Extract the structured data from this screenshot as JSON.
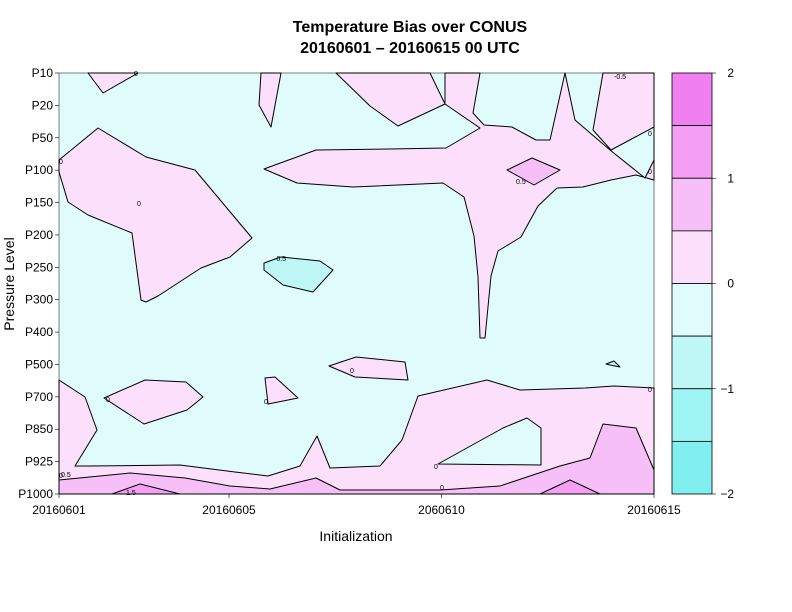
{
  "chart_data": {
    "type": "contour",
    "title": "Temperature Bias over CONUS",
    "subtitle": "20160601 – 20160615 00 UTC",
    "xlabel": "Initialization",
    "ylabel": "Pressure Level",
    "x_ticks": [
      "20160601",
      "20160605",
      "2060610",
      "20160615"
    ],
    "x_tick_days": [
      1,
      5,
      10,
      15
    ],
    "xlim": [
      1,
      15
    ],
    "y_ticks": [
      "P10",
      "P20",
      "P50",
      "P100",
      "P150",
      "P200",
      "P250",
      "P300",
      "P400",
      "P500",
      "P700",
      "P850",
      "P925",
      "P1000"
    ],
    "colorbar": {
      "range": [
        -2,
        2
      ],
      "ticks": [
        "2",
        "1",
        "0",
        "−1",
        "−2"
      ],
      "tick_values": [
        2,
        1,
        0,
        -1,
        -2
      ],
      "levels": [
        -2,
        -1.5,
        -1,
        -0.5,
        0,
        0.5,
        1,
        1.5,
        2
      ],
      "colors": [
        "#7fefef",
        "#9ff4f4",
        "#bff7f7",
        "#dffbfb",
        "#fbdffb",
        "#f7bff7",
        "#f49ff4",
        "#f07ff0"
      ]
    },
    "contour_labels": [
      "0",
      "-0.5",
      "0",
      "0",
      "0",
      "0",
      "0.5",
      "0",
      "0",
      "-0.5",
      "0",
      "0",
      "0",
      "0",
      "0",
      "0.5",
      "1.5"
    ],
    "regions": [
      {
        "level_range": "0 to 0.5",
        "days": [
          2.0,
          3.2
        ],
        "levels": [
          "P10",
          "P10"
        ]
      },
      {
        "level_range": "0 to 0.5",
        "days": [
          1.0,
          5.5
        ],
        "levels": [
          "P50",
          "P300"
        ]
      },
      {
        "level_range": "0 to 0.5",
        "days": [
          6.1,
          6.4
        ],
        "levels": [
          "P10",
          "P50"
        ]
      },
      {
        "level_range": "0 to 0.5",
        "days": [
          8.0,
          9.5
        ],
        "levels": [
          "P10",
          "P50"
        ]
      },
      {
        "level_range": "0 to 0.5",
        "days": [
          6.1,
          15.0
        ],
        "levels": [
          "P10",
          "P400"
        ]
      },
      {
        "level_range": "-0.5 to 0",
        "days": [
          6.1,
          7.2
        ],
        "levels": [
          "P250",
          "P300"
        ]
      },
      {
        "level_range": "0.5 to 1",
        "days": [
          11.2,
          12.4
        ],
        "levels": [
          "P100",
          "P150"
        ]
      },
      {
        "level_range": "0 to 0.5",
        "days": [
          7.8,
          9.5
        ],
        "levels": [
          "P500",
          "P700"
        ]
      },
      {
        "level_range": "0 to 0.5",
        "days": [
          1.8,
          3.8
        ],
        "levels": [
          "P700",
          "P850"
        ]
      },
      {
        "level_range": "0 to 0.5",
        "days": [
          6.1,
          6.5
        ],
        "levels": [
          "P700",
          "P700"
        ]
      },
      {
        "level_range": "0 to 0.5",
        "days": [
          1.0,
          15.0
        ],
        "levels": [
          "P500",
          "P1000"
        ]
      },
      {
        "level_range": "-0.5 to 0",
        "days": [
          13.4,
          13.7
        ],
        "levels": [
          "P500",
          "P500"
        ]
      },
      {
        "level_range": "0.5 to 1",
        "days": [
          1.0,
          15.0
        ],
        "levels": [
          "P925",
          "P1000"
        ]
      }
    ]
  }
}
